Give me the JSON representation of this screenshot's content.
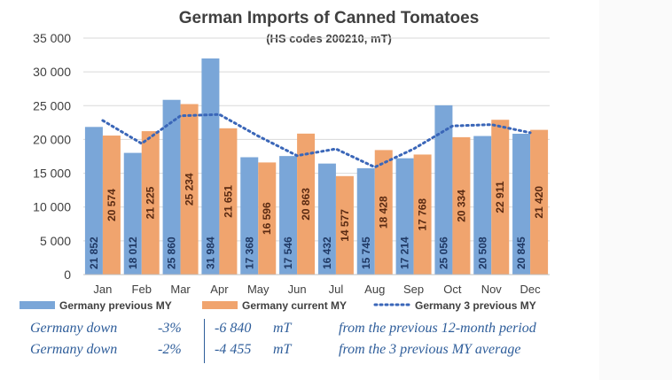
{
  "chart_data": {
    "type": "bar",
    "title": "German Imports of Canned Tomatoes",
    "subtitle": "(HS codes 200210, mT)",
    "categories": [
      "Jan",
      "Feb",
      "Mar",
      "Apr",
      "May",
      "Jun",
      "Jul",
      "Aug",
      "Sep",
      "Oct",
      "Nov",
      "Dec"
    ],
    "series": [
      {
        "name": "Germany previous MY",
        "kind": "bar",
        "color": "#7aa6d8",
        "values": [
          21852,
          18012,
          25860,
          31984,
          17368,
          17546,
          16432,
          15745,
          17214,
          25056,
          20508,
          20845
        ]
      },
      {
        "name": "Germany current MY",
        "kind": "bar",
        "color": "#f0a46e",
        "values": [
          20574,
          21225,
          25234,
          21651,
          16596,
          20863,
          14577,
          18428,
          17768,
          20334,
          22911,
          21420
        ]
      },
      {
        "name": "Germany 3 previous MY",
        "kind": "line",
        "style": "dotted",
        "color": "#3a66b8",
        "values": [
          22800,
          19400,
          23500,
          23700,
          20500,
          17600,
          18600,
          15900,
          18600,
          22000,
          22200,
          21000
        ]
      }
    ],
    "value_labels": {
      "previous": [
        "21 852",
        "18 012",
        "25 860",
        "31 984",
        "17 368",
        "17 546",
        "16 432",
        "15 745",
        "17 214",
        "25 056",
        "20 508",
        "20 845"
      ],
      "current": [
        "20 574",
        "21 225",
        "25 234",
        "21 651",
        "16 596",
        "20 863",
        "14 577",
        "18 428",
        "17 768",
        "20 334",
        "22 911",
        "21 420"
      ]
    },
    "yticks": [
      0,
      5000,
      10000,
      15000,
      20000,
      25000,
      30000,
      35000
    ],
    "ytick_labels": [
      "0",
      "5 000",
      "10 000",
      "15 000",
      "20 000",
      "25 000",
      "30 000",
      "35 000"
    ],
    "ylim": [
      0,
      35000
    ],
    "grid": true,
    "legend_position": "bottom"
  },
  "notes": [
    {
      "label": "Germany down",
      "pct": "-3%",
      "amount": "-6 840",
      "unit": "mT",
      "desc": "from the previous 12-month period"
    },
    {
      "label": "Germany down",
      "pct": "-2%",
      "amount": "-4 455",
      "unit": "mT",
      "desc": "from the 3 previous MY average"
    }
  ]
}
